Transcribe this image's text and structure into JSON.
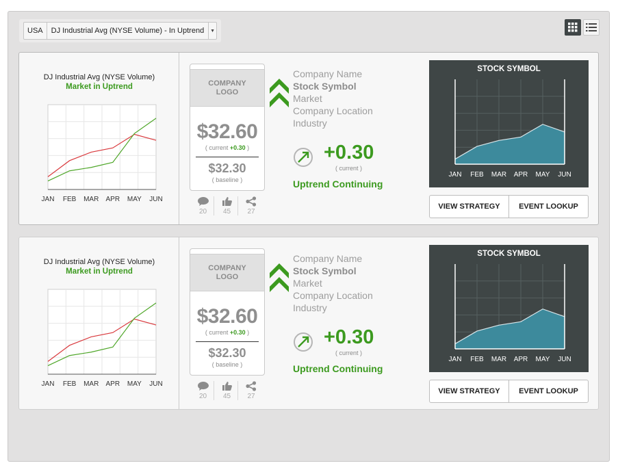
{
  "selector": {
    "country": "USA",
    "index_label": "DJ Industrial Avg (NYSE Volume) - In Uptrend"
  },
  "cards": [
    {
      "market_title": "DJ Industrial Avg (NYSE Volume)",
      "market_status": "Market in Uptrend",
      "logo_placeholder": "COMPANY LOGO",
      "price_current": "$32.60",
      "current_prefix": "( current ",
      "current_change": "+0.30",
      "current_suffix": " )",
      "price_baseline": "$32.30",
      "baseline_note": "( baseline )",
      "comments": "20",
      "likes": "45",
      "shares": "27",
      "company_name": "Company Name",
      "stock_symbol": "Stock Symbol",
      "market": "Market",
      "company_location": "Company Location",
      "industry": "Industry",
      "change": "+0.30",
      "change_note": "( current )",
      "trend_label": "Uptrend Continuing",
      "stock_chart_title": "STOCK SYMBOL",
      "view_strategy": "VIEW STRATEGY",
      "event_lookup": "EVENT LOOKUP"
    },
    {
      "market_title": "DJ Industrial Avg (NYSE Volume)",
      "market_status": "Market in Uptrend",
      "logo_placeholder": "COMPANY LOGO",
      "price_current": "$32.60",
      "current_prefix": "( current ",
      "current_change": "+0.30",
      "current_suffix": " )",
      "price_baseline": "$32.30",
      "baseline_note": "( baseline )",
      "comments": "20",
      "likes": "45",
      "shares": "27",
      "company_name": "Company Name",
      "stock_symbol": "Stock Symbol",
      "market": "Market",
      "company_location": "Company Location",
      "industry": "Industry",
      "change": "+0.30",
      "change_note": "( current )",
      "trend_label": "Uptrend Continuing",
      "stock_chart_title": "STOCK SYMBOL",
      "view_strategy": "VIEW STRATEGY",
      "event_lookup": "EVENT LOOKUP"
    }
  ],
  "chart_data": [
    {
      "type": "line",
      "x": [
        "JAN",
        "FEB",
        "MAR",
        "APR",
        "MAY",
        "JUN"
      ],
      "series": [
        {
          "color": "#d9383c",
          "values": [
            0.15,
            0.34,
            0.44,
            0.49,
            0.65,
            0.58
          ]
        },
        {
          "color": "#4ea628",
          "values": [
            0.1,
            0.22,
            0.26,
            0.32,
            0.66,
            0.84
          ]
        }
      ],
      "grid": true,
      "xlabel": "",
      "ylabel": ""
    },
    {
      "type": "area",
      "x": [
        "JAN",
        "FEB",
        "MAR",
        "APR",
        "MAY",
        "JUN"
      ],
      "values": [
        0.06,
        0.21,
        0.28,
        0.32,
        0.47,
        0.38
      ],
      "color": "#3d8a9c",
      "grid": true,
      "title": "STOCK SYMBOL"
    }
  ],
  "colors": {
    "accent_green": "#3c9a1f",
    "dark_panel": "#3f4646"
  },
  "icons": [
    "grid-view-icon",
    "list-view-icon",
    "comment-icon",
    "thumbs-up-icon",
    "share-icon",
    "chevron-up-double-icon",
    "trend-arrow-icon"
  ]
}
